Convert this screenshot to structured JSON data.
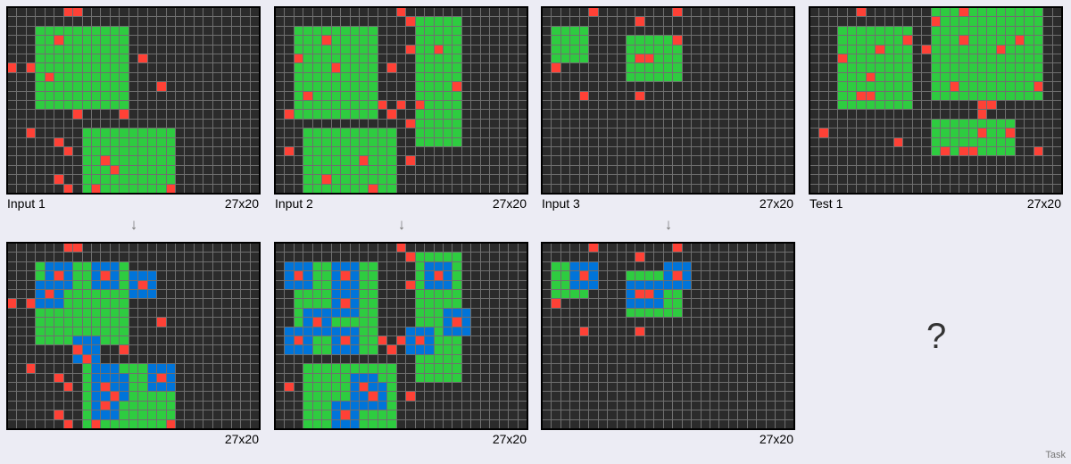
{
  "width": 27,
  "height": 20,
  "colors": {
    "background": "#2b2b2b",
    "red": "#ff4136",
    "green": "#2ecc40",
    "blue": "#0074d9"
  },
  "labels": {
    "input_1": "Input 1",
    "input_2": "Input 2",
    "input_3": "Input 3",
    "test_1": "Test 1",
    "size": "27x20",
    "unknown": "?",
    "footer": "Task"
  },
  "grids": {
    "input_1": {
      "rects": [
        [
          3,
          2,
          12,
          10,
          2
        ],
        [
          8,
          13,
          17,
          19,
          2
        ]
      ],
      "reds": [
        [
          6,
          0
        ],
        [
          7,
          0
        ],
        [
          5,
          3
        ],
        [
          14,
          5
        ],
        [
          0,
          6
        ],
        [
          2,
          6
        ],
        [
          4,
          7
        ],
        [
          16,
          8
        ],
        [
          7,
          11
        ],
        [
          12,
          11
        ],
        [
          2,
          13
        ],
        [
          5,
          14
        ],
        [
          6,
          15
        ],
        [
          10,
          16
        ],
        [
          11,
          17
        ],
        [
          5,
          18
        ],
        [
          6,
          19
        ],
        [
          9,
          19
        ],
        [
          17,
          19
        ]
      ]
    },
    "output_1": {
      "rects": [
        [
          3,
          2,
          12,
          10,
          2
        ],
        [
          8,
          13,
          17,
          19,
          2
        ],
        [
          4,
          2,
          6,
          4,
          3
        ],
        [
          9,
          2,
          11,
          4,
          3
        ],
        [
          13,
          3,
          15,
          5,
          3
        ],
        [
          3,
          4,
          5,
          6,
          3
        ],
        [
          7,
          10,
          9,
          12,
          3
        ],
        [
          9,
          13,
          11,
          15,
          3
        ],
        [
          15,
          13,
          17,
          15,
          3
        ],
        [
          10,
          14,
          12,
          16,
          3
        ],
        [
          9,
          16,
          11,
          18,
          3
        ]
      ],
      "reds": [
        [
          6,
          0
        ],
        [
          7,
          0
        ],
        [
          5,
          3
        ],
        [
          10,
          3
        ],
        [
          14,
          4
        ],
        [
          4,
          5
        ],
        [
          0,
          6
        ],
        [
          2,
          6
        ],
        [
          16,
          8
        ],
        [
          7,
          11
        ],
        [
          12,
          11
        ],
        [
          8,
          12
        ],
        [
          2,
          13
        ],
        [
          16,
          14
        ],
        [
          10,
          15
        ],
        [
          5,
          14
        ],
        [
          6,
          15
        ],
        [
          11,
          16
        ],
        [
          10,
          17
        ],
        [
          5,
          18
        ],
        [
          6,
          19
        ],
        [
          9,
          19
        ],
        [
          17,
          19
        ]
      ]
    },
    "input_2": {
      "rects": [
        [
          2,
          2,
          10,
          11,
          2
        ],
        [
          15,
          1,
          19,
          14,
          2
        ],
        [
          3,
          13,
          12,
          19,
          2
        ]
      ],
      "reds": [
        [
          13,
          0
        ],
        [
          14,
          1
        ],
        [
          5,
          3
        ],
        [
          14,
          4
        ],
        [
          17,
          4
        ],
        [
          2,
          5
        ],
        [
          6,
          6
        ],
        [
          12,
          6
        ],
        [
          3,
          9
        ],
        [
          19,
          8
        ],
        [
          11,
          10
        ],
        [
          13,
          10
        ],
        [
          15,
          10
        ],
        [
          1,
          11
        ],
        [
          12,
          11
        ],
        [
          14,
          12
        ],
        [
          1,
          15
        ],
        [
          9,
          16
        ],
        [
          14,
          16
        ],
        [
          5,
          18
        ],
        [
          10,
          19
        ]
      ]
    },
    "output_2": {
      "rects": [
        [
          2,
          2,
          10,
          11,
          2
        ],
        [
          15,
          1,
          19,
          14,
          2
        ],
        [
          3,
          13,
          12,
          19,
          2
        ],
        [
          1,
          2,
          3,
          4,
          3
        ],
        [
          6,
          2,
          8,
          4,
          3
        ],
        [
          16,
          2,
          18,
          4,
          3
        ],
        [
          6,
          5,
          8,
          7,
          3
        ],
        [
          3,
          7,
          5,
          9,
          3
        ],
        [
          1,
          9,
          3,
          11,
          3
        ],
        [
          6,
          9,
          8,
          11,
          3
        ],
        [
          14,
          9,
          16,
          11,
          3
        ],
        [
          18,
          7,
          20,
          9,
          3
        ],
        [
          8,
          14,
          10,
          16,
          3
        ],
        [
          9,
          15,
          11,
          17,
          3
        ],
        [
          6,
          17,
          8,
          19,
          3
        ]
      ],
      "reds": [
        [
          13,
          0
        ],
        [
          14,
          1
        ],
        [
          2,
          3
        ],
        [
          7,
          3
        ],
        [
          17,
          3
        ],
        [
          14,
          4
        ],
        [
          7,
          6
        ],
        [
          4,
          8
        ],
        [
          19,
          8
        ],
        [
          2,
          10
        ],
        [
          7,
          10
        ],
        [
          11,
          10
        ],
        [
          15,
          10
        ],
        [
          12,
          11
        ],
        [
          13,
          10
        ],
        [
          1,
          15
        ],
        [
          9,
          15
        ],
        [
          14,
          16
        ],
        [
          10,
          16
        ],
        [
          7,
          18
        ]
      ]
    },
    "input_3": {
      "rects": [
        [
          1,
          2,
          4,
          5,
          2
        ],
        [
          9,
          3,
          14,
          7,
          2
        ]
      ],
      "reds": [
        [
          5,
          0
        ],
        [
          14,
          0
        ],
        [
          10,
          1
        ],
        [
          14,
          3
        ],
        [
          10,
          5
        ],
        [
          11,
          5
        ],
        [
          1,
          6
        ],
        [
          4,
          9
        ],
        [
          10,
          9
        ]
      ]
    },
    "output_3": {
      "rects": [
        [
          1,
          2,
          4,
          5,
          2
        ],
        [
          9,
          3,
          14,
          7,
          2
        ],
        [
          3,
          2,
          5,
          4,
          3
        ],
        [
          13,
          2,
          15,
          4,
          3
        ],
        [
          9,
          4,
          11,
          6,
          3
        ],
        [
          10,
          4,
          12,
          6,
          3
        ]
      ],
      "reds": [
        [
          5,
          0
        ],
        [
          14,
          0
        ],
        [
          10,
          1
        ],
        [
          4,
          3
        ],
        [
          14,
          3
        ],
        [
          10,
          5
        ],
        [
          11,
          5
        ],
        [
          1,
          6
        ],
        [
          4,
          9
        ],
        [
          10,
          9
        ]
      ]
    },
    "test_1": {
      "rects": [
        [
          3,
          2,
          10,
          10,
          2
        ],
        [
          13,
          0,
          24,
          9,
          2
        ],
        [
          13,
          12,
          21,
          15,
          2
        ]
      ],
      "reds": [
        [
          5,
          0
        ],
        [
          16,
          0
        ],
        [
          13,
          1
        ],
        [
          10,
          3
        ],
        [
          12,
          4
        ],
        [
          16,
          3
        ],
        [
          22,
          3
        ],
        [
          7,
          4
        ],
        [
          20,
          4
        ],
        [
          3,
          5
        ],
        [
          6,
          7
        ],
        [
          15,
          8
        ],
        [
          24,
          8
        ],
        [
          5,
          9
        ],
        [
          6,
          9
        ],
        [
          18,
          10
        ],
        [
          19,
          10
        ],
        [
          18,
          11
        ],
        [
          1,
          13
        ],
        [
          18,
          13
        ],
        [
          21,
          13
        ],
        [
          9,
          14
        ],
        [
          14,
          15
        ],
        [
          16,
          15
        ],
        [
          17,
          15
        ],
        [
          24,
          15
        ]
      ]
    }
  }
}
